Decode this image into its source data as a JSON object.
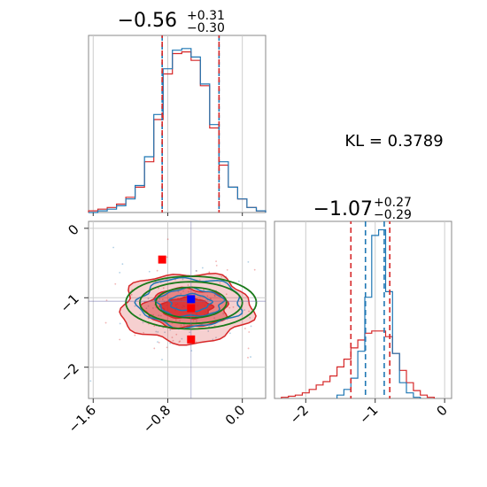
{
  "kl_annotation": "KL = 0.3789",
  "colors": {
    "red": "#d62728",
    "blue": "#1f77b4",
    "green": "#1a7a1a",
    "marker_red": "#ff0000",
    "marker_blue": "#0000ff",
    "grid": "#cccccc",
    "frame": "#888888"
  },
  "chart_data": [
    {
      "type": "histogram",
      "panel": "top-left marginal (param 1)",
      "title_main": "−0.56",
      "title_sup": "+0.31",
      "title_sub": "−0.30",
      "xlim": [
        -1.65,
        0.25
      ],
      "x_ticks": [
        -1.6,
        -0.8,
        0.0
      ],
      "vlines_red": [
        -0.86,
        -0.25
      ],
      "vlines_blue": [
        -0.86,
        -0.25
      ],
      "series": [
        {
          "name": "",
          "color": "red",
          "bins_center": [
            -1.6,
            -1.5,
            -1.4,
            -1.3,
            -1.2,
            -1.1,
            -1.0,
            -0.9,
            -0.8,
            -0.7,
            -0.6,
            -0.5,
            -0.4,
            -0.3,
            -0.2,
            -0.1,
            0.0,
            0.1,
            0.2
          ],
          "counts": [
            1,
            2,
            3,
            5,
            9,
            15,
            30,
            55,
            82,
            94,
            95,
            90,
            75,
            50,
            28,
            15,
            8,
            3,
            1
          ]
        },
        {
          "name": "",
          "color": "blue",
          "bins_center": [
            -1.6,
            -1.5,
            -1.4,
            -1.3,
            -1.2,
            -1.1,
            -1.0,
            -0.9,
            -0.8,
            -0.7,
            -0.6,
            -0.5,
            -0.4,
            -0.3,
            -0.2,
            -0.1,
            0.0,
            0.1,
            0.2
          ],
          "counts": [
            0,
            1,
            2,
            4,
            8,
            16,
            33,
            58,
            85,
            96,
            97,
            92,
            76,
            52,
            30,
            15,
            8,
            3,
            1
          ]
        }
      ]
    },
    {
      "type": "scatter",
      "panel": "bottom-left 2D joint (param 1 vs param 2)",
      "xlim": [
        -1.65,
        0.25
      ],
      "ylim": [
        -2.45,
        0.1
      ],
      "x_ticks": [
        "−1.6",
        "−0.8",
        "0.0"
      ],
      "x_tick_values": [
        -1.6,
        -0.8,
        0.0
      ],
      "y_ticks": [
        "0",
        "−1",
        "−2"
      ],
      "y_tick_values": [
        0,
        -1,
        -2
      ],
      "contours_red_center": [
        -0.6,
        -1.15
      ],
      "contours_red_radii": [
        [
          0.27,
          0.15
        ],
        [
          0.45,
          0.28
        ],
        [
          0.7,
          0.5
        ]
      ],
      "contours_blue_center": [
        -0.56,
        -1.07
      ],
      "contours_blue_radii": [
        [
          0.22,
          0.12
        ],
        [
          0.35,
          0.2
        ],
        [
          0.55,
          0.35
        ]
      ],
      "contours_green_center": [
        -0.55,
        -1.07
      ],
      "contours_green_radii": [
        [
          0.38,
          0.22
        ],
        [
          0.55,
          0.3
        ],
        [
          0.7,
          0.38
        ]
      ],
      "markers_red": [
        [
          -0.86,
          -0.45
        ],
        [
          -0.55,
          -1.6
        ],
        [
          -0.55,
          -1.15
        ]
      ],
      "markers_blue": [
        [
          -0.55,
          -1.02
        ]
      ],
      "crosshair": [
        -0.55,
        -1.05
      ]
    },
    {
      "type": "histogram",
      "panel": "bottom-right marginal (param 2)",
      "title_main": "−1.07",
      "title_sup": "+0.27",
      "title_sub": "−0.29",
      "xlim": [
        -2.45,
        0.1
      ],
      "x_ticks": [
        "−2",
        "−1",
        "0"
      ],
      "x_tick_values": [
        -2,
        -1,
        0
      ],
      "vlines_red": [
        -1.35,
        -0.79
      ],
      "vlines_blue": [
        -1.14,
        -0.87
      ],
      "series": [
        {
          "name": "",
          "color": "red",
          "bins_center": [
            -2.3,
            -2.2,
            -2.1,
            -2.0,
            -1.9,
            -1.8,
            -1.7,
            -1.6,
            -1.5,
            -1.4,
            -1.3,
            -1.2,
            -1.1,
            -1.0,
            -0.9,
            -0.8,
            -0.7,
            -0.6,
            -0.5,
            -0.4,
            -0.3,
            -0.2
          ],
          "counts": [
            1,
            2,
            3,
            5,
            8,
            12,
            15,
            20,
            28,
            35,
            45,
            52,
            58,
            60,
            60,
            55,
            40,
            25,
            14,
            7,
            3,
            1
          ]
        },
        {
          "name": "",
          "color": "blue",
          "bins_center": [
            -1.5,
            -1.4,
            -1.3,
            -1.2,
            -1.1,
            -1.0,
            -0.9,
            -0.8,
            -0.7,
            -0.6,
            -0.5,
            -0.4
          ],
          "counts": [
            3,
            8,
            18,
            42,
            90,
            145,
            150,
            95,
            40,
            14,
            5,
            1
          ]
        }
      ]
    }
  ]
}
